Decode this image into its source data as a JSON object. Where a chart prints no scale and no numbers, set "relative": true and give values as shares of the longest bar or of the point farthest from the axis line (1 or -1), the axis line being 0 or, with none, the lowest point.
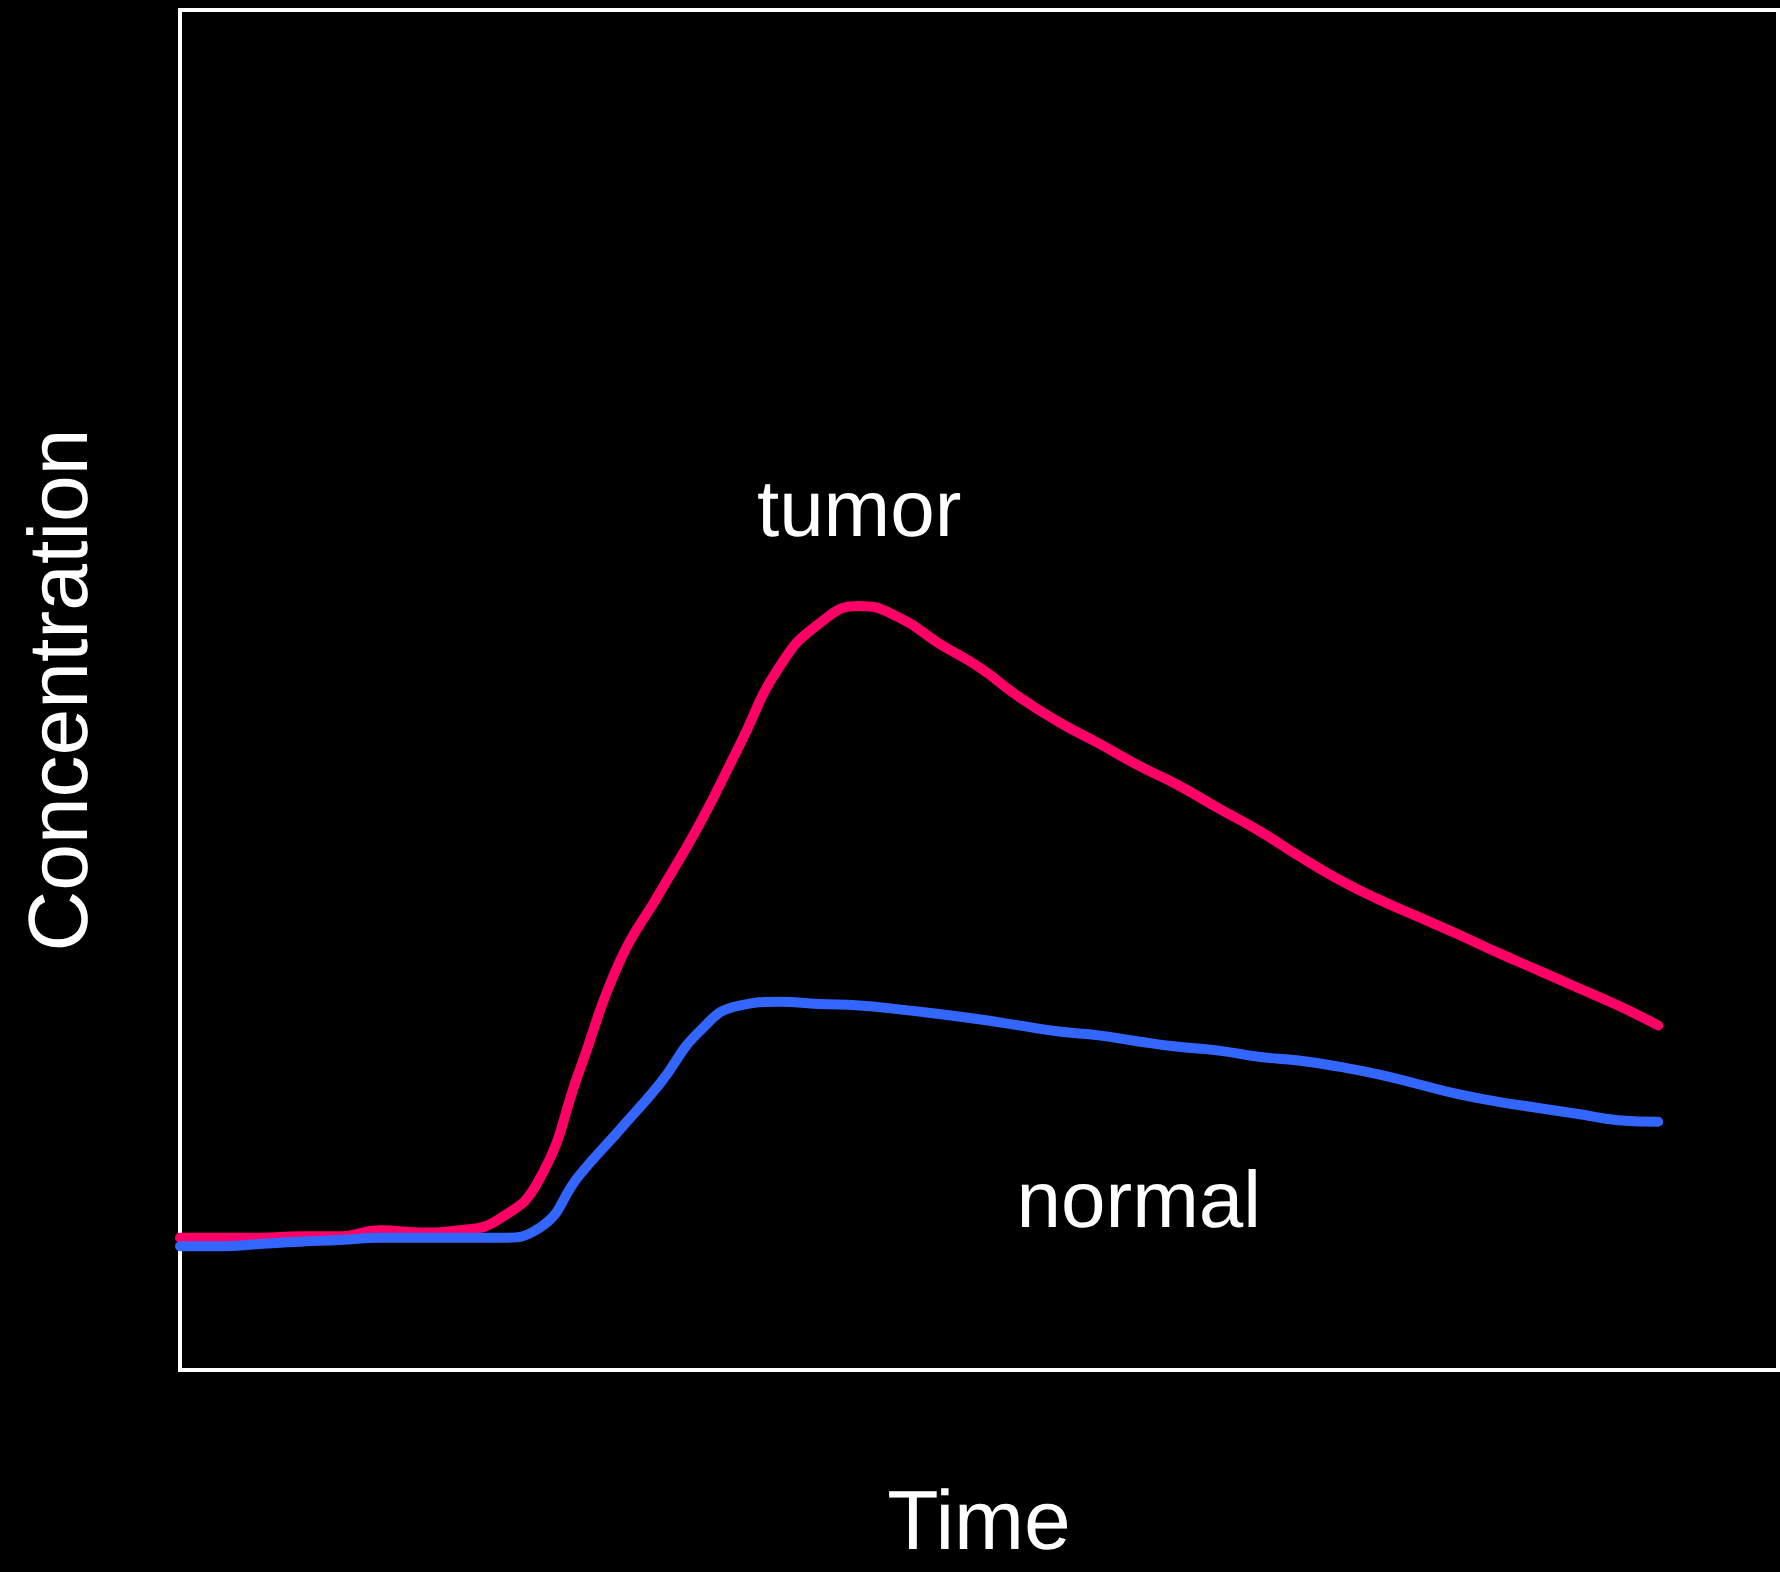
{
  "chart_data": {
    "type": "line",
    "relative": true,
    "xlabel": "Time",
    "ylabel": "Concentration",
    "marker": "none",
    "line_style": "solid",
    "categories": [
      null,
      null,
      null,
      null,
      null,
      null,
      null,
      null,
      null,
      null,
      null,
      null,
      null,
      null,
      null,
      null,
      null,
      null,
      null,
      null,
      null,
      null,
      null,
      null,
      null,
      null,
      null,
      null,
      null,
      null,
      null,
      null,
      null,
      null,
      null,
      null,
      null,
      null,
      null,
      null,
      null
    ],
    "series": [
      {
        "name": "tumor",
        "color": "#ff0066",
        "values": [
          0.173,
          0.173,
          0.173,
          0.175,
          0.175,
          0.183,
          0.18,
          0.183,
          0.198,
          0.25,
          0.392,
          0.534,
          0.624,
          0.714,
          0.817,
          0.92,
          0.977,
          1.0,
          0.985,
          0.951,
          0.92,
          0.881,
          0.848,
          0.82,
          0.791,
          0.765,
          0.735,
          0.706,
          0.673,
          0.642,
          0.616,
          0.593,
          0.57,
          0.546,
          0.523,
          0.5,
          0.477,
          0.451,
          null,
          null,
          null
        ]
      },
      {
        "name": "normal",
        "color": "#3366ff",
        "values": [
          0.162,
          0.162,
          0.165,
          0.168,
          0.17,
          0.173,
          0.173,
          0.173,
          0.173,
          0.186,
          0.255,
          0.314,
          0.374,
          0.443,
          0.477,
          0.482,
          0.479,
          0.477,
          0.472,
          0.466,
          0.459,
          0.451,
          0.443,
          0.438,
          0.43,
          0.423,
          0.418,
          0.41,
          0.405,
          0.397,
          0.387,
          0.374,
          0.361,
          0.351,
          0.343,
          0.335,
          0.327,
          0.325,
          null,
          null,
          null
        ]
      }
    ]
  }
}
